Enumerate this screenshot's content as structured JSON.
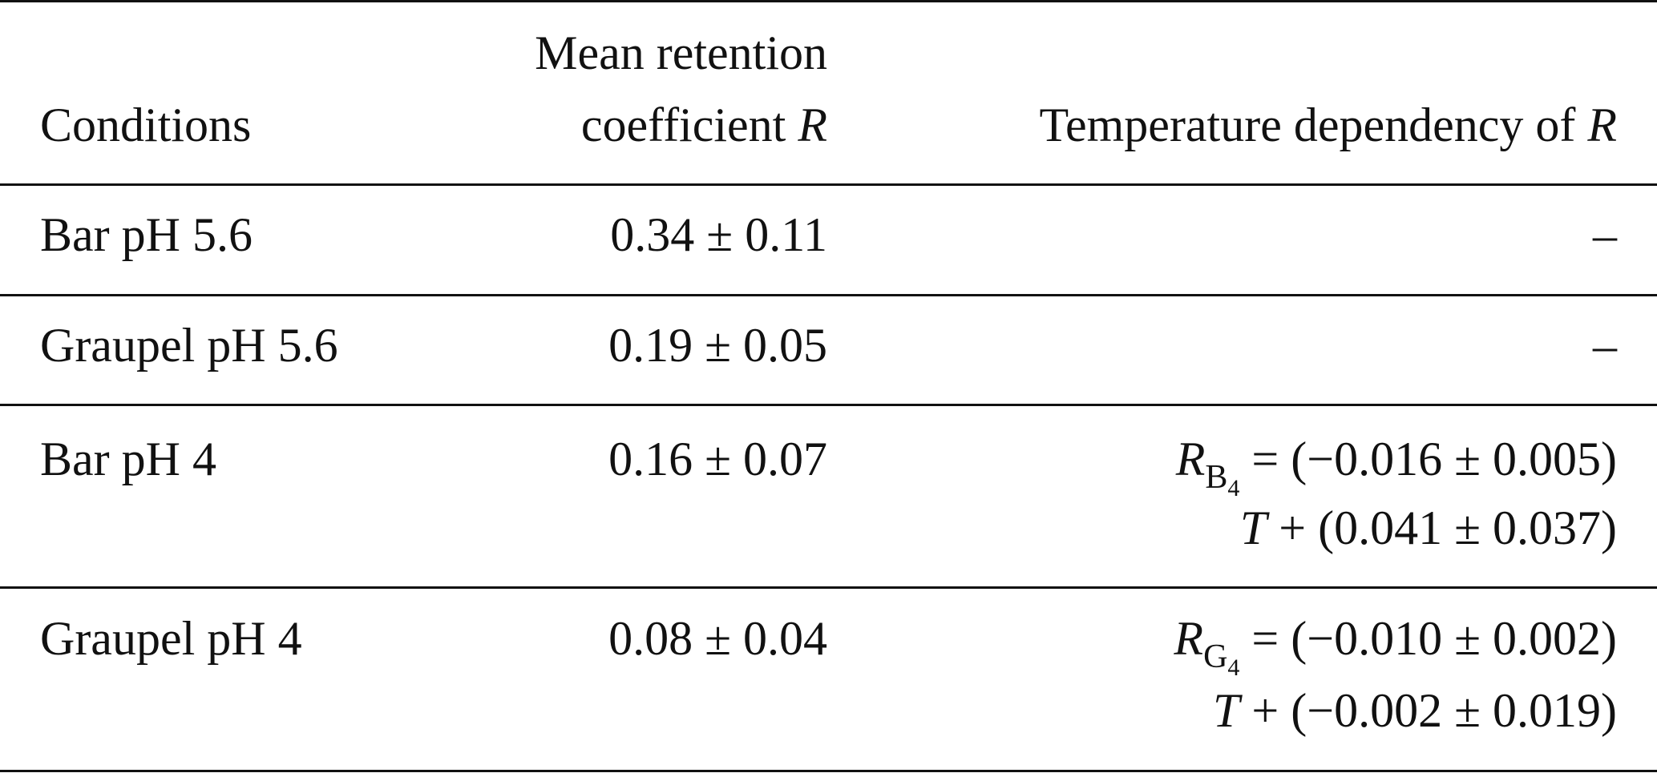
{
  "table": {
    "header": {
      "conditions": "Conditions",
      "mean": {
        "line1": "Mean retention",
        "line2": "coefficient",
        "symbol": "R"
      },
      "temp": {
        "text": "Temperature dependency of",
        "symbol": "R"
      }
    },
    "rows": [
      {
        "condition": "Bar pH 5.6",
        "mean": "0.34 ± 0.11",
        "temp": "–"
      },
      {
        "condition": "Graupel pH 5.6",
        "mean": "0.19 ± 0.05",
        "temp": "–"
      },
      {
        "condition": "Bar pH 4",
        "mean": "0.16 ± 0.07",
        "temp": {
          "symbol": "R",
          "sub": "B",
          "subsub": "4",
          "line1": "= (−0.016 ± 0.005)",
          "var": "T",
          "line2": "+ (0.041 ± 0.037)"
        }
      },
      {
        "condition": "Graupel pH 4",
        "mean": "0.08 ± 0.04",
        "temp": {
          "symbol": "R",
          "sub": "G",
          "subsub": "4",
          "line1": "= (−0.010 ± 0.002)",
          "var": "T",
          "line2": "+ (−0.002 ± 0.019)"
        }
      }
    ]
  }
}
